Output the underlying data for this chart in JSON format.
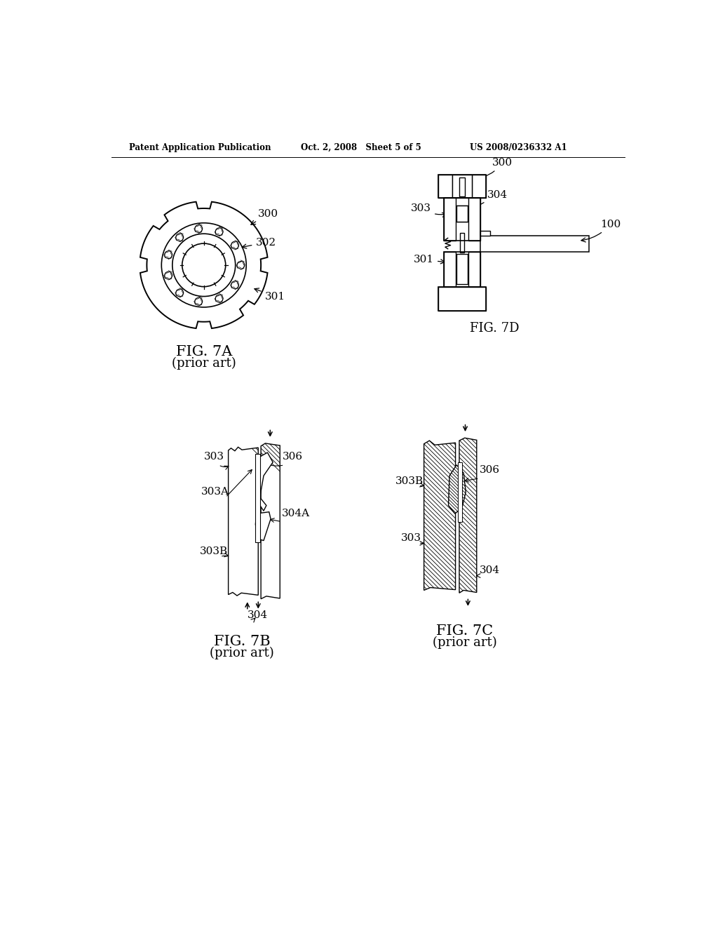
{
  "bg_color": "#ffffff",
  "header_left": "Patent Application Publication",
  "header_mid": "Oct. 2, 2008   Sheet 5 of 5",
  "header_right": "US 2008/0236332 A1",
  "fig7a_caption": "FIG. 7A",
  "fig7a_subcap": "(prior art)",
  "fig7b_caption": "FIG. 7B",
  "fig7b_subcap": "(prior art)",
  "fig7c_caption": "FIG. 7C",
  "fig7c_subcap": "(prior art)",
  "fig7d_caption": "FIG. 7D"
}
